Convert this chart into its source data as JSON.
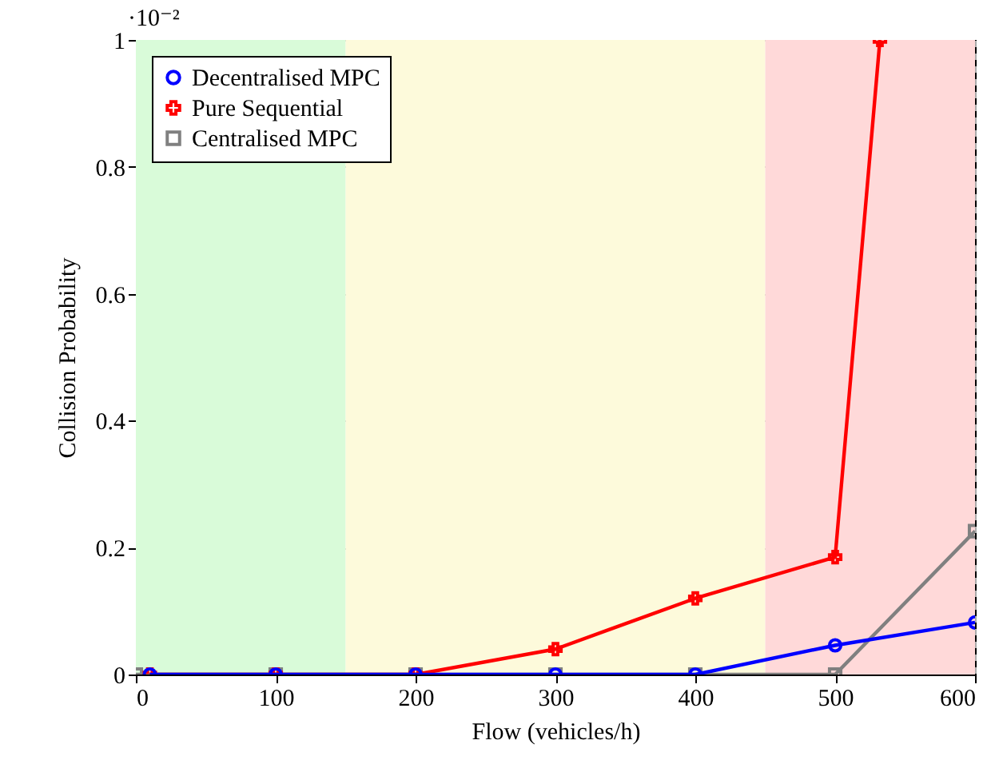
{
  "chart_data": {
    "type": "line",
    "xlabel": "Flow (vehicles/h)",
    "ylabel": "Collision Probability",
    "annotations": [
      "·10⁻²"
    ],
    "xlim": [
      0,
      600
    ],
    "xticks": [
      0,
      100,
      200,
      300,
      400,
      500,
      600
    ],
    "ylim": [
      0,
      1
    ],
    "yticks": [
      0,
      0.2,
      0.4,
      0.6,
      0.8,
      1
    ],
    "grid": true,
    "legend": "top left",
    "line_style": "solid",
    "bands": [
      {
        "axis": "x",
        "from": 0,
        "to": 150,
        "color": "#d9fbd9"
      },
      {
        "axis": "x",
        "from": 150,
        "to": 450,
        "color": "#fdfadb"
      },
      {
        "axis": "x",
        "from": 450,
        "to": 600,
        "color": "#ffd9d9"
      }
    ],
    "series": [
      {
        "name": "Decentralised MPC",
        "color": "#0000ff",
        "marker": "circle",
        "x": [
          10,
          100,
          200,
          300,
          400,
          500,
          600
        ],
        "values": [
          0,
          0,
          0,
          0,
          0,
          0.046,
          0.082
        ]
      },
      {
        "name": "Pure Sequential",
        "color": "#ff0000",
        "marker": "cross",
        "x": [
          10,
          100,
          200,
          300,
          400,
          500,
          532
        ],
        "values": [
          0,
          0,
          0,
          0.04,
          0.12,
          0.185,
          1
        ]
      },
      {
        "name": "Centralised MPC",
        "color": "#808080",
        "marker": "square",
        "x": [
          0,
          100,
          200,
          300,
          400,
          500,
          600
        ],
        "values": [
          0,
          0,
          0,
          0,
          0,
          0,
          0.226
        ]
      }
    ]
  }
}
